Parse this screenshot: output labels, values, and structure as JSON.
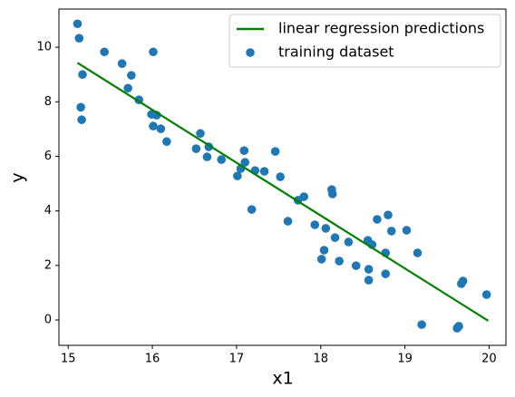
{
  "chart_data": {
    "type": "scatter",
    "xlabel": "x1",
    "ylabel": "y",
    "xlim": [
      14.89,
      20.2
    ],
    "ylim": [
      -0.93,
      11.4
    ],
    "xticks": [
      15,
      16,
      17,
      18,
      19,
      20
    ],
    "yticks": [
      0,
      2,
      4,
      6,
      8,
      10
    ],
    "legend": "upper right",
    "series": [
      {
        "name": "linear regression predictions",
        "kind": "line",
        "color": "#008000",
        "x": [
          15.11,
          19.99
        ],
        "values": [
          9.43,
          -0.03
        ]
      },
      {
        "name": "training dataset",
        "kind": "scatter",
        "color": "#1f77b4",
        "x": [
          15.11,
          15.13,
          15.17,
          15.15,
          15.16,
          15.43,
          15.64,
          15.75,
          15.71,
          15.84,
          16.01,
          15.99,
          16.05,
          16.01,
          16.1,
          16.17,
          16.52,
          16.57,
          16.67,
          16.65,
          16.82,
          17.01,
          17.05,
          17.09,
          17.1,
          17.22,
          17.33,
          17.46,
          17.52,
          17.18,
          17.61,
          17.73,
          17.8,
          18.13,
          18.14,
          17.93,
          18.06,
          18.04,
          18.01,
          18.17,
          18.22,
          18.33,
          18.42,
          18.56,
          18.61,
          18.57,
          18.57,
          18.67,
          18.8,
          18.84,
          18.77,
          18.77,
          19.02,
          19.15,
          19.2,
          19.62,
          19.64,
          19.69,
          19.67,
          19.97
        ],
        "values": [
          10.86,
          10.33,
          9.0,
          7.8,
          7.34,
          9.83,
          9.4,
          8.97,
          8.5,
          8.07,
          9.83,
          7.54,
          7.51,
          7.11,
          7.01,
          6.54,
          6.28,
          6.84,
          6.35,
          5.98,
          5.88,
          5.28,
          5.55,
          6.21,
          5.78,
          5.48,
          5.45,
          6.18,
          5.25,
          4.05,
          3.62,
          4.39,
          4.52,
          4.78,
          4.62,
          3.49,
          3.36,
          2.56,
          2.23,
          3.02,
          2.16,
          2.86,
          1.99,
          2.92,
          2.76,
          1.86,
          1.46,
          3.69,
          3.85,
          3.26,
          2.46,
          1.69,
          3.29,
          2.46,
          -0.17,
          -0.3,
          -0.23,
          1.43,
          1.33,
          0.93
        ]
      }
    ]
  }
}
